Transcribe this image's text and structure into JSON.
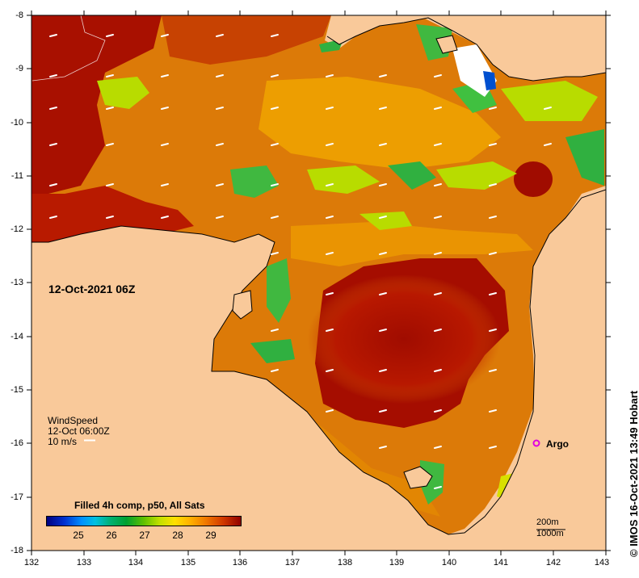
{
  "map": {
    "date_label": "12-Oct-2021 06Z",
    "colors": {
      "land": "#f9c99a",
      "hot": "#a81000",
      "warm": "#d86a00",
      "mid": "#f0a000",
      "cool": "#b8dc00",
      "cooler": "#30b040",
      "water_white": "#ffffff"
    },
    "x_ticks": [
      "132",
      "133",
      "134",
      "135",
      "136",
      "137",
      "138",
      "139",
      "140",
      "141",
      "142",
      "143"
    ],
    "y_ticks": [
      "-8",
      "-9",
      "-10",
      "-11",
      "-12",
      "-13",
      "-14",
      "-15",
      "-16",
      "-17",
      "-18"
    ],
    "wind": {
      "title": "WindSpeed",
      "time": "12-Oct 06:00Z",
      "scale": "10 m/s"
    },
    "colorbar": {
      "title": "Filled 4h comp, p50, All Sats",
      "ticks": [
        "25",
        "26",
        "27",
        "28",
        "29"
      ],
      "range": [
        24,
        30
      ]
    },
    "scale_bar": {
      "line1": "200m",
      "line2": "1000m"
    },
    "argo": {
      "label": "Argo",
      "color": "#e000e0"
    },
    "credit": "© IMOS 16-Oct-2021 13:49 Hobart"
  }
}
